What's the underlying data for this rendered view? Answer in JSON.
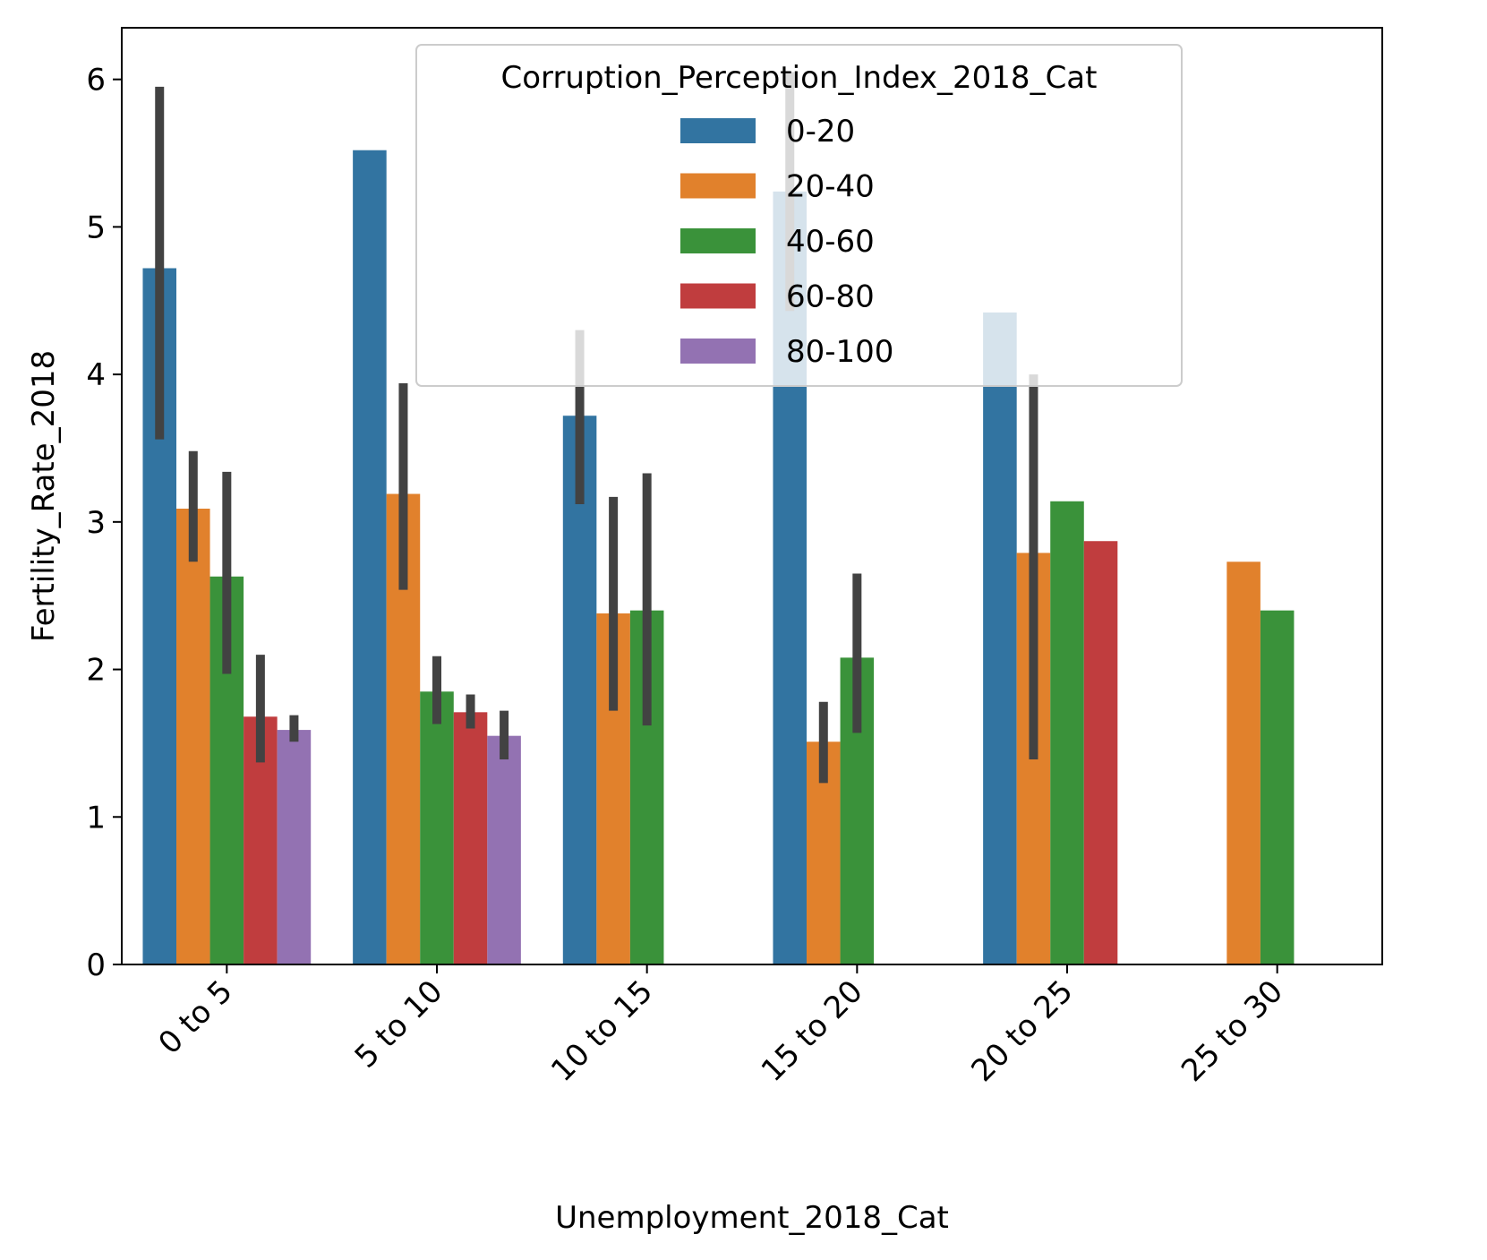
{
  "chart_data": {
    "type": "bar",
    "xlabel": "Unemployment_2018_Cat",
    "ylabel": "Fertility_Rate_2018",
    "categories": [
      "0 to 5",
      "5 to 10",
      "10 to 15",
      "15 to 20",
      "20 to 25",
      "25 to 30"
    ],
    "ylim": [
      0,
      6.35
    ],
    "yticks": [
      0,
      1,
      2,
      3,
      4,
      5,
      6
    ],
    "grid": false,
    "legend": {
      "title": "Corruption_Perception_Index_2018_Cat",
      "position": "upper-center"
    },
    "series": [
      {
        "name": "0-20",
        "color": "#3274a1",
        "values": [
          4.72,
          5.52,
          3.72,
          5.24,
          4.42,
          null
        ],
        "ci": [
          [
            3.56,
            5.95
          ],
          null,
          [
            3.12,
            4.3
          ],
          [
            4.43,
            6.05
          ],
          null,
          null
        ]
      },
      {
        "name": "20-40",
        "color": "#e1812c",
        "values": [
          3.09,
          3.19,
          2.38,
          1.51,
          2.79,
          2.73
        ],
        "ci": [
          [
            2.73,
            3.48
          ],
          [
            2.54,
            3.94
          ],
          [
            1.72,
            3.17
          ],
          [
            1.23,
            1.78
          ],
          [
            1.39,
            4.0
          ],
          null
        ]
      },
      {
        "name": "40-60",
        "color": "#3a923a",
        "values": [
          2.63,
          1.85,
          2.4,
          2.08,
          3.14,
          2.4
        ],
        "ci": [
          [
            1.97,
            3.34
          ],
          [
            1.63,
            2.09
          ],
          [
            1.62,
            3.33
          ],
          [
            1.57,
            2.65
          ],
          null,
          null
        ]
      },
      {
        "name": "60-80",
        "color": "#c03d3e",
        "values": [
          1.68,
          1.71,
          null,
          null,
          2.87,
          null
        ],
        "ci": [
          [
            1.37,
            2.1
          ],
          [
            1.6,
            1.83
          ],
          null,
          null,
          null,
          null
        ]
      },
      {
        "name": "80-100",
        "color": "#9372b2",
        "values": [
          1.59,
          1.55,
          null,
          null,
          null,
          null
        ],
        "ci": [
          [
            1.51,
            1.69
          ],
          [
            1.39,
            1.72
          ],
          null,
          null,
          null,
          null
        ]
      }
    ]
  }
}
